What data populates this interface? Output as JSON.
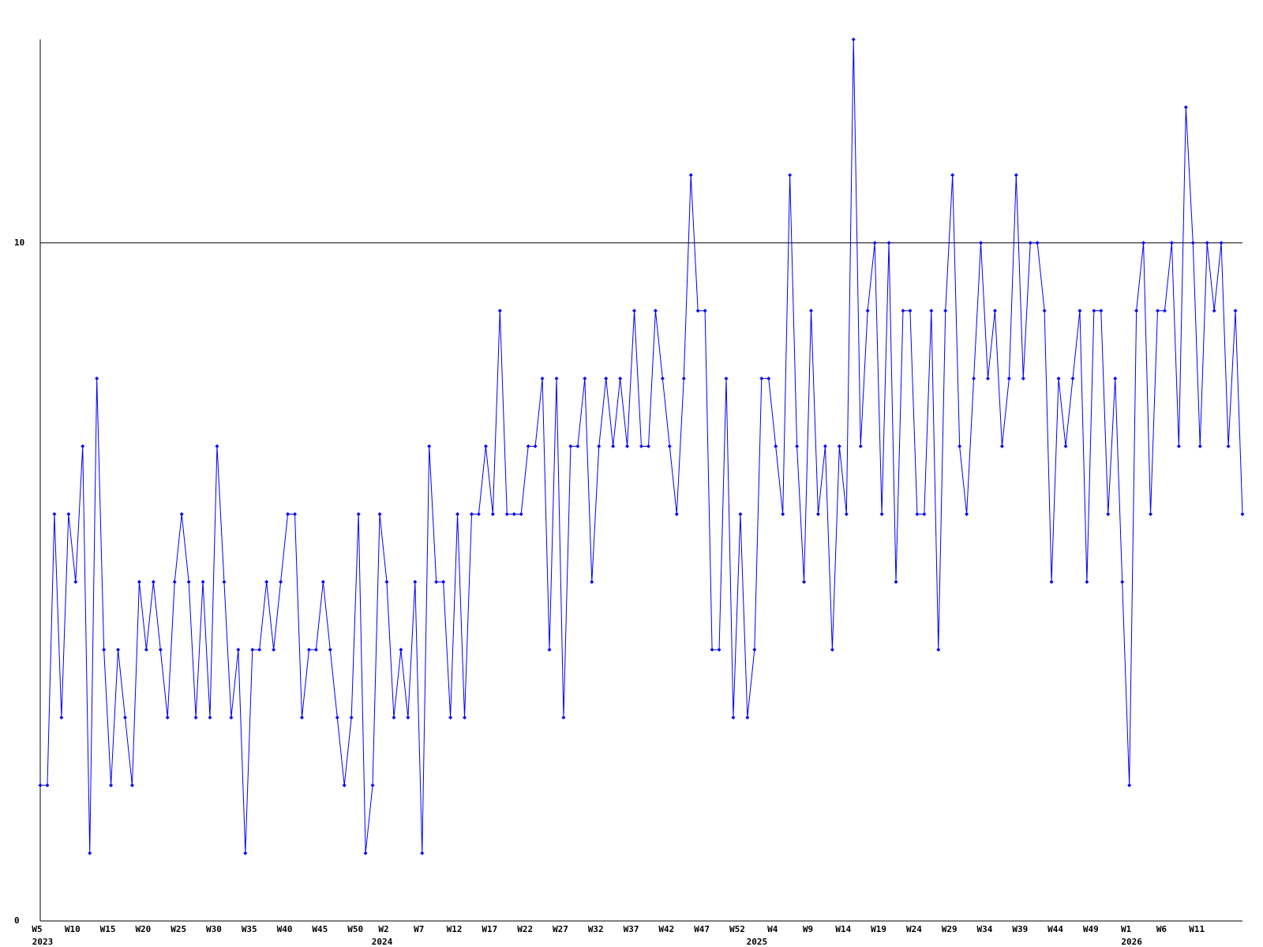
{
  "chart_data": {
    "type": "line",
    "color": "#0000ff",
    "ylim": [
      0,
      13
    ],
    "yticks": [
      0,
      10
    ],
    "grid": true,
    "categories": [
      "W5",
      null,
      null,
      null,
      null,
      "W10",
      null,
      null,
      null,
      null,
      "W15",
      null,
      null,
      null,
      null,
      "W20",
      null,
      null,
      null,
      null,
      "W25",
      null,
      null,
      null,
      null,
      "W30",
      null,
      null,
      null,
      null,
      "W35",
      null,
      null,
      null,
      null,
      "W40",
      null,
      null,
      null,
      null,
      "W45",
      null,
      null,
      null,
      null,
      "W50",
      null,
      null,
      null,
      "W2",
      null,
      null,
      null,
      null,
      "W7",
      null,
      null,
      null,
      null,
      "W12",
      null,
      null,
      null,
      null,
      "W17",
      null,
      null,
      null,
      null,
      "W22",
      null,
      null,
      null,
      null,
      "W27",
      null,
      null,
      null,
      null,
      "W32",
      null,
      null,
      null,
      null,
      "W37",
      null,
      null,
      null,
      null,
      "W42",
      null,
      null,
      null,
      null,
      "W47",
      null,
      null,
      null,
      null,
      "W52",
      null,
      null,
      null,
      null,
      "W4",
      null,
      null,
      null,
      null,
      "W9",
      null,
      null,
      null,
      null,
      "W14",
      null,
      null,
      null,
      null,
      "W19",
      null,
      null,
      null,
      null,
      "W24",
      null,
      null,
      null,
      null,
      "W29",
      null,
      null,
      null,
      null,
      "W34",
      null,
      null,
      null,
      null,
      "W39",
      null,
      null,
      null,
      null,
      "W44",
      null,
      null,
      null,
      null,
      "W49",
      null,
      null,
      null,
      null,
      "W1",
      null,
      null,
      null,
      null,
      "W6",
      null,
      null,
      null,
      null,
      "W11",
      null,
      null,
      null,
      null,
      null,
      null
    ],
    "year_labels": [
      "2023",
      null,
      null,
      null,
      null,
      null,
      null,
      null,
      null,
      null,
      null,
      null,
      null,
      null,
      null,
      null,
      null,
      null,
      null,
      null,
      null,
      null,
      null,
      null,
      null,
      null,
      null,
      null,
      null,
      null,
      null,
      null,
      null,
      null,
      null,
      null,
      null,
      null,
      null,
      null,
      null,
      null,
      null,
      null,
      null,
      null,
      null,
      null,
      "2024",
      null,
      null,
      null,
      null,
      null,
      null,
      null,
      null,
      null,
      null,
      null,
      null,
      null,
      null,
      null,
      null,
      null,
      null,
      null,
      null,
      null,
      null,
      null,
      null,
      null,
      null,
      null,
      null,
      null,
      null,
      null,
      null,
      null,
      null,
      null,
      null,
      null,
      null,
      null,
      null,
      null,
      null,
      null,
      null,
      null,
      null,
      null,
      null,
      null,
      null,
      null,
      null,
      "2025",
      null,
      null,
      null,
      null,
      null,
      null,
      null,
      null,
      null,
      null,
      null,
      null,
      null,
      null,
      null,
      null,
      null,
      null,
      null,
      null,
      null,
      null,
      null,
      null,
      null,
      null,
      null,
      null,
      null,
      null,
      null,
      null,
      null,
      null,
      null,
      null,
      null,
      null,
      null,
      null,
      null,
      null,
      null,
      null,
      null,
      null,
      null,
      null,
      null,
      null,
      null,
      null,
      "2026",
      null,
      null,
      null,
      null,
      null,
      null,
      null,
      null,
      null,
      null,
      null,
      null,
      null,
      null,
      null,
      null
    ],
    "values": [
      2,
      2,
      6,
      3,
      6,
      5,
      7,
      1,
      8,
      4,
      2,
      4,
      3,
      2,
      5,
      4,
      5,
      4,
      3,
      5,
      6,
      5,
      3,
      5,
      3,
      7,
      5,
      3,
      4,
      1,
      4,
      4,
      5,
      4,
      5,
      6,
      6,
      3,
      4,
      4,
      5,
      4,
      3,
      2,
      3,
      6,
      1,
      2,
      6,
      5,
      3,
      4,
      3,
      5,
      1,
      7,
      5,
      5,
      3,
      6,
      3,
      6,
      6,
      7,
      6,
      9,
      6,
      6,
      6,
      7,
      7,
      8,
      4,
      8,
      3,
      7,
      7,
      8,
      5,
      7,
      8,
      7,
      8,
      7,
      9,
      7,
      7,
      9,
      8,
      7,
      6,
      8,
      11,
      9,
      9,
      4,
      4,
      8,
      3,
      6,
      3,
      4,
      8,
      8,
      7,
      6,
      11,
      7,
      5,
      9,
      6,
      7,
      4,
      7,
      6,
      13,
      7,
      9,
      10,
      6,
      10,
      5,
      9,
      9,
      6,
      6,
      9,
      4,
      9,
      11,
      7,
      6,
      8,
      10,
      8,
      9,
      7,
      8,
      11,
      8,
      10,
      10,
      9,
      5,
      8,
      7,
      8,
      9,
      5,
      9,
      9,
      6,
      8,
      5,
      2,
      9,
      10,
      6,
      9,
      9,
      10,
      7,
      12,
      10,
      7,
      10,
      9,
      10,
      7,
      9,
      6
    ]
  }
}
